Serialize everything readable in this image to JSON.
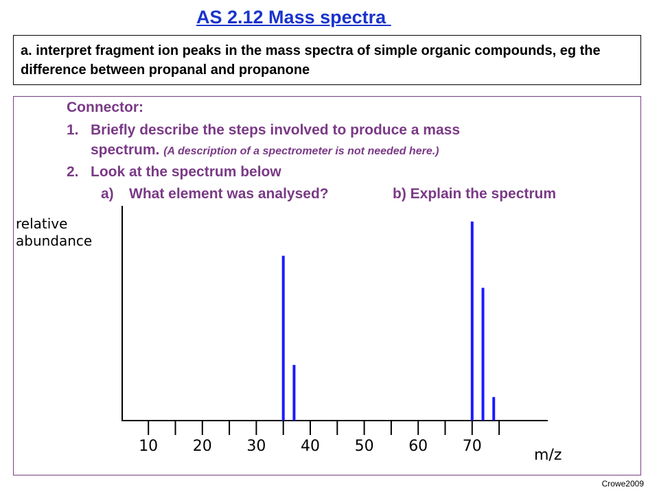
{
  "header": {
    "title": "AS 2.12 Mass spectra "
  },
  "objective": {
    "text": "a. interpret fragment ion peaks in the mass spectra of simple organic compounds, eg the difference between propanal and propanone"
  },
  "connector": {
    "heading": "Connector:",
    "item1_num": "1.",
    "item1_text": "Briefly describe the steps involved to produce a mass",
    "item1_cont": "spectrum.",
    "item1_note": "(A description of a spectrometer is not needed here.)",
    "item2_num": "2.",
    "item2_text": "Look at the spectrum below",
    "sub_a": "a)",
    "sub_a_text": "What element was analysed?",
    "sub_b": "b) Explain the spectrum"
  },
  "chart_data": {
    "type": "bar",
    "ylabel": "relative abundance",
    "ylabel_lines": [
      "relative",
      "abundance"
    ],
    "xlabel": "m/z",
    "xlim": [
      0,
      75
    ],
    "xticks": [
      10,
      20,
      30,
      40,
      50,
      60,
      70
    ],
    "ylim": [
      0,
      100
    ],
    "bar_color": "#1a1aff",
    "values": [
      {
        "x": 35,
        "y": 77
      },
      {
        "x": 37,
        "y": 26
      },
      {
        "x": 70,
        "y": 93
      },
      {
        "x": 72,
        "y": 62
      },
      {
        "x": 74,
        "y": 11
      }
    ]
  },
  "footer": {
    "credit": "Crowe2009"
  }
}
